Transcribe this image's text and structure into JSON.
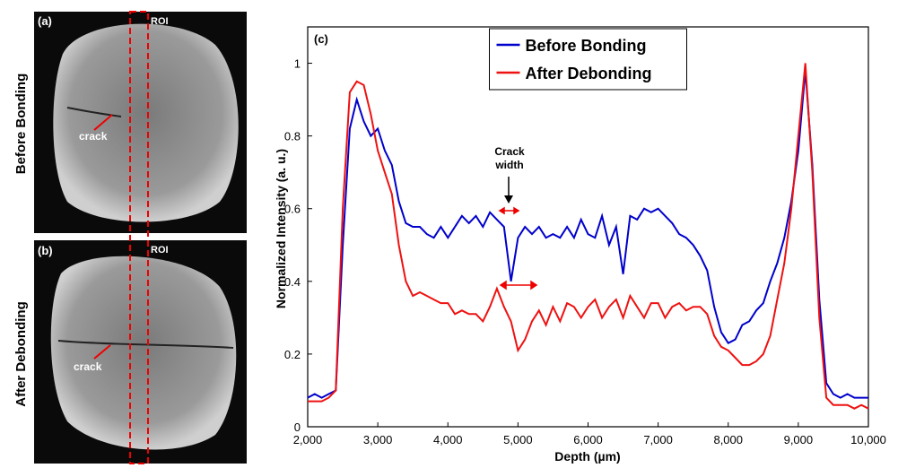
{
  "image_panels": [
    {
      "label": "(a)",
      "roi": "ROI",
      "side_label": "Before Bonding",
      "annotation": "crack"
    },
    {
      "label": "(b)",
      "roi": "ROI",
      "side_label": "After Debonding",
      "annotation": "crack"
    }
  ],
  "chart_data": {
    "type": "line",
    "panel_label": "(c)",
    "x_label": "Depth (µm)",
    "y_label": "Normalized Intensity (a. u.)",
    "annotations": [
      {
        "text": "Crack width"
      }
    ],
    "legend": "upper center",
    "xlim": [
      2000,
      10000
    ],
    "xticks": [
      {
        "value": 2000,
        "label": "2,000"
      },
      {
        "value": 3000,
        "label": "3,000"
      },
      {
        "value": 4000,
        "label": "4,000"
      },
      {
        "value": 5000,
        "label": "5,000"
      },
      {
        "value": 6000,
        "label": "6,000"
      },
      {
        "value": 7000,
        "label": "7,000"
      },
      {
        "value": 8000,
        "label": "8,000"
      },
      {
        "value": 9000,
        "label": "9,000"
      },
      {
        "value": 10000,
        "label": "10,000"
      }
    ],
    "ylim": [
      0,
      1.1
    ],
    "yticks": [
      0,
      0.2,
      0.4,
      0.6,
      0.8,
      1
    ],
    "x": [
      2000,
      2100,
      2200,
      2300,
      2400,
      2500,
      2600,
      2700,
      2800,
      2900,
      3000,
      3100,
      3200,
      3300,
      3400,
      3500,
      3600,
      3700,
      3800,
      3900,
      4000,
      4100,
      4200,
      4300,
      4400,
      4500,
      4600,
      4700,
      4800,
      4900,
      5000,
      5100,
      5200,
      5300,
      5400,
      5500,
      5600,
      5700,
      5800,
      5900,
      6000,
      6100,
      6200,
      6300,
      6400,
      6500,
      6600,
      6700,
      6800,
      6900,
      7000,
      7100,
      7200,
      7300,
      7400,
      7500,
      7600,
      7700,
      7800,
      7900,
      8000,
      8100,
      8200,
      8300,
      8400,
      8500,
      8600,
      8700,
      8800,
      8900,
      9000,
      9100,
      9200,
      9300,
      9400,
      9500,
      9600,
      9700,
      9800,
      9900,
      10000
    ],
    "series": [
      {
        "name": "Before Bonding",
        "color": "#0000cc",
        "values": [
          0.08,
          0.09,
          0.08,
          0.09,
          0.1,
          0.5,
          0.82,
          0.9,
          0.84,
          0.8,
          0.82,
          0.76,
          0.72,
          0.62,
          0.56,
          0.55,
          0.55,
          0.53,
          0.52,
          0.55,
          0.52,
          0.55,
          0.58,
          0.56,
          0.58,
          0.55,
          0.59,
          0.57,
          0.55,
          0.4,
          0.52,
          0.55,
          0.53,
          0.55,
          0.52,
          0.53,
          0.52,
          0.55,
          0.52,
          0.57,
          0.53,
          0.52,
          0.58,
          0.5,
          0.55,
          0.42,
          0.58,
          0.57,
          0.6,
          0.59,
          0.6,
          0.58,
          0.56,
          0.53,
          0.52,
          0.5,
          0.47,
          0.43,
          0.33,
          0.26,
          0.23,
          0.24,
          0.28,
          0.29,
          0.32,
          0.34,
          0.4,
          0.45,
          0.52,
          0.62,
          0.76,
          0.98,
          0.72,
          0.35,
          0.12,
          0.09,
          0.08,
          0.09,
          0.08,
          0.08,
          0.08
        ]
      },
      {
        "name": "After Debonding",
        "color": "#ee1111",
        "values": [
          0.07,
          0.07,
          0.07,
          0.08,
          0.1,
          0.6,
          0.92,
          0.95,
          0.94,
          0.86,
          0.76,
          0.7,
          0.64,
          0.5,
          0.4,
          0.36,
          0.37,
          0.36,
          0.35,
          0.34,
          0.34,
          0.31,
          0.32,
          0.31,
          0.31,
          0.29,
          0.33,
          0.38,
          0.33,
          0.29,
          0.21,
          0.24,
          0.29,
          0.32,
          0.28,
          0.33,
          0.29,
          0.34,
          0.33,
          0.3,
          0.33,
          0.35,
          0.3,
          0.33,
          0.35,
          0.3,
          0.36,
          0.33,
          0.3,
          0.34,
          0.34,
          0.3,
          0.33,
          0.34,
          0.32,
          0.33,
          0.33,
          0.31,
          0.25,
          0.22,
          0.21,
          0.19,
          0.17,
          0.17,
          0.18,
          0.2,
          0.25,
          0.35,
          0.45,
          0.6,
          0.8,
          1.0,
          0.7,
          0.3,
          0.08,
          0.06,
          0.06,
          0.06,
          0.05,
          0.06,
          0.05
        ]
      }
    ]
  }
}
